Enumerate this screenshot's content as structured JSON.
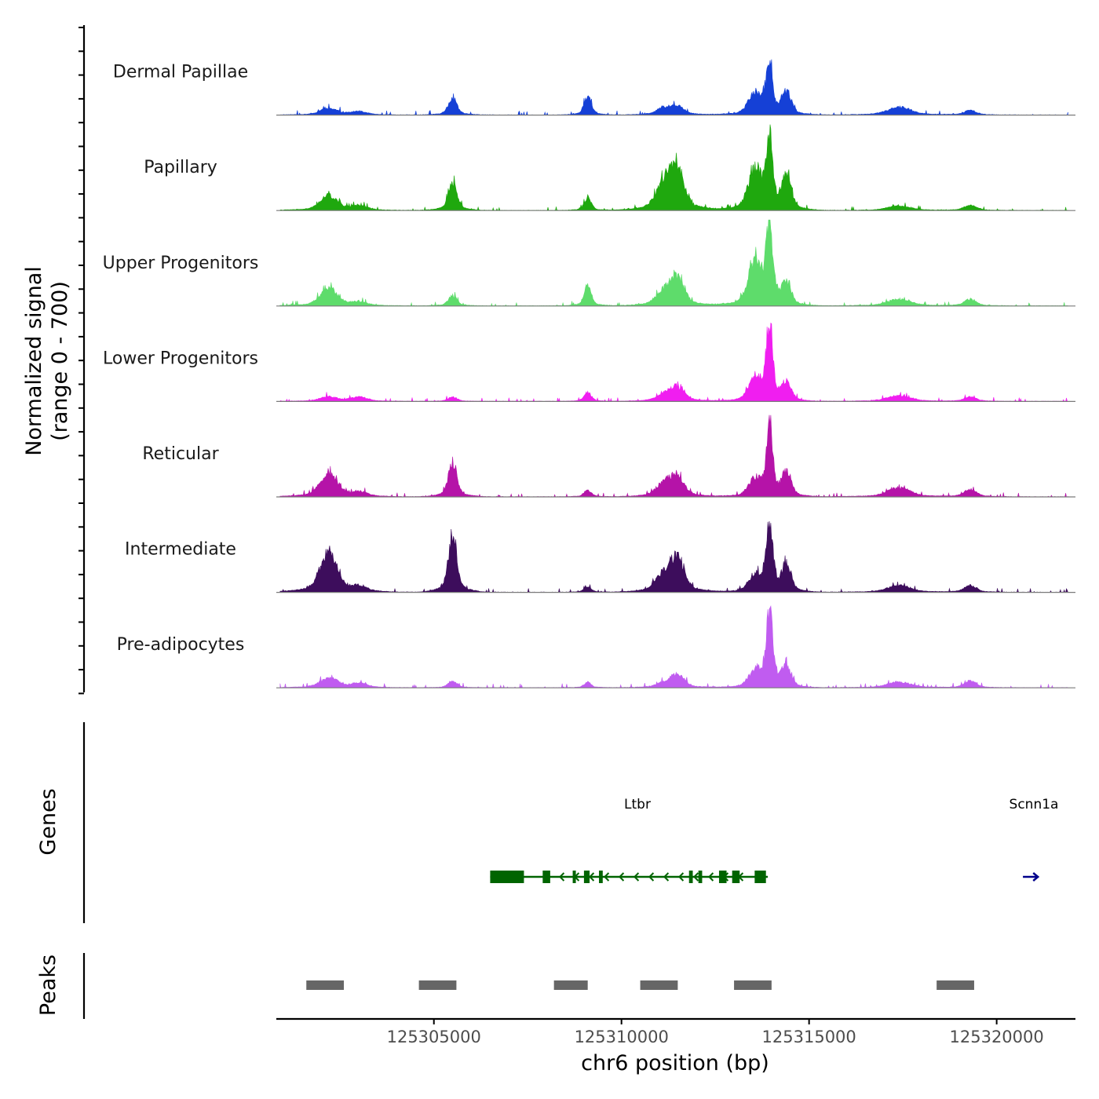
{
  "chart_data": {
    "type": "area",
    "title": "",
    "xlabel": "chr6 position (bp)",
    "ylabel": "Normalized signal",
    "ylabel_range": "(range 0 - 700)",
    "ylim": [
      0,
      700
    ],
    "xlim": [
      125300800,
      125322100
    ],
    "x_ticks": [
      125305000,
      125310000,
      125315000,
      125320000
    ],
    "x_tick_labels": [
      "125305000",
      "125310000",
      "125315000",
      "125320000"
    ],
    "peak_centers": [
      125302200,
      125305500,
      125309100,
      125311500,
      125313950,
      125314400,
      125319300
    ],
    "tracks": [
      {
        "name": "Dermal Papillae",
        "color": "#1540d6",
        "heights": [
          60,
          150,
          170,
          70,
          60,
          200,
          430,
          200,
          40,
          30,
          70
        ]
      },
      {
        "name": "Papillary",
        "color": "#1fa80e",
        "heights": [
          130,
          250,
          110,
          330,
          250,
          360,
          590,
          300,
          50,
          40,
          40
        ]
      },
      {
        "name": "Upper Progenitors",
        "color": "#5edc6b",
        "heights": [
          160,
          90,
          180,
          230,
          130,
          400,
          690,
          190,
          60,
          30,
          60
        ]
      },
      {
        "name": "Lower Progenitors",
        "color": "#f01ef0",
        "heights": [
          40,
          40,
          80,
          120,
          60,
          200,
          660,
          160,
          40,
          40,
          50
        ]
      },
      {
        "name": "Reticular",
        "color": "#b513a8",
        "heights": [
          210,
          300,
          60,
          160,
          120,
          160,
          600,
          210,
          70,
          40,
          80
        ]
      },
      {
        "name": "Intermediate",
        "color": "#3d0d5c",
        "heights": [
          360,
          500,
          50,
          280,
          160,
          150,
          620,
          240,
          60,
          40,
          60
        ]
      },
      {
        "name": "Pre-adipocytes",
        "color": "#c05cf0",
        "heights": [
          90,
          60,
          50,
          110,
          40,
          150,
          710,
          180,
          60,
          40,
          50
        ]
      }
    ],
    "genes_title": "Genes",
    "genes": [
      {
        "name": "Ltbr",
        "start": 125306500,
        "end": 125313900,
        "strand": "-",
        "color": "#006400",
        "exons": [
          [
            125306500,
            125307400
          ],
          [
            125307900,
            125308100
          ],
          [
            125308700,
            125308760
          ],
          [
            125309000,
            125309150
          ],
          [
            125309400,
            125309500
          ],
          [
            125311800,
            125311900
          ],
          [
            125312050,
            125312150
          ],
          [
            125312600,
            125312800
          ],
          [
            125312950,
            125313150
          ],
          [
            125313550,
            125313850
          ]
        ]
      },
      {
        "name": "Scnn1a",
        "start": 125320700,
        "end": 125321100,
        "strand": "+",
        "color": "#00008b",
        "exons": []
      }
    ],
    "peaks_title": "Peaks",
    "peaks_color": "#666666",
    "peaks": [
      [
        125301600,
        125302600
      ],
      [
        125304600,
        125305600
      ],
      [
        125308200,
        125309100
      ],
      [
        125310500,
        125311500
      ],
      [
        125313000,
        125314000
      ],
      [
        125318400,
        125319400
      ]
    ]
  }
}
